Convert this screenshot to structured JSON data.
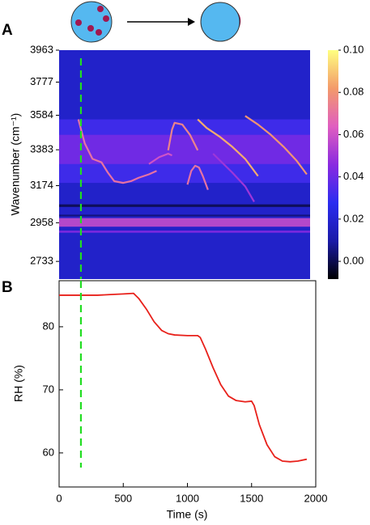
{
  "chart_data": [
    {
      "type": "heatmap",
      "panel": "A",
      "y_label": "Wavenumber (cm⁻¹)",
      "xlim": [
        0,
        2000
      ],
      "ylim": [
        2630,
        3963
      ],
      "yticks": [
        3963,
        3777,
        3584,
        3383,
        3174,
        2958,
        2733
      ],
      "clim": [
        -0.0084,
        0.1
      ],
      "cticks": [
        {
          "value": 0,
          "label": "0.00"
        },
        {
          "value": 0.02,
          "label": "0.02"
        },
        {
          "value": 0.04,
          "label": "0.04"
        },
        {
          "value": 0.06,
          "label": "0.06"
        },
        {
          "value": 0.08,
          "label": "0.08"
        },
        {
          "value": 0.1,
          "label": "0.10"
        }
      ],
      "colormap": [
        "#000000",
        "#1a1aa8",
        "#2b2cf0",
        "#8a2ae0",
        "#e05ec0",
        "#f39a6a",
        "#ffff80"
      ],
      "background": 0.018,
      "bands": [
        {
          "from": 3190,
          "to": 3560,
          "value": 0.032
        },
        {
          "from": 3300,
          "to": 3470,
          "value": 0.042
        },
        {
          "from": 3050,
          "to": 3065,
          "value": 0.0
        },
        {
          "from": 2995,
          "to": 3005,
          "value": 0.004
        },
        {
          "from": 2935,
          "to": 2985,
          "value": 0.058
        },
        {
          "from": 2900,
          "to": 2912,
          "value": 0.045
        }
      ],
      "traces": [
        {
          "x": [
            150,
            200,
            260,
            330,
            380,
            430,
            500,
            560,
            620,
            700,
            760
          ],
          "y": [
            3560,
            3420,
            3330,
            3310,
            3250,
            3200,
            3190,
            3200,
            3220,
            3240,
            3260
          ],
          "value": 0.07
        },
        {
          "x": [
            700,
            780,
            850,
            880
          ],
          "y": [
            3300,
            3340,
            3360,
            3350
          ],
          "value": 0.06
        },
        {
          "x": [
            850,
            880,
            900,
            960,
            1020,
            1080
          ],
          "y": [
            3380,
            3500,
            3540,
            3530,
            3470,
            3380
          ],
          "value": 0.075
        },
        {
          "x": [
            1000,
            1030,
            1060,
            1090,
            1120,
            1160
          ],
          "y": [
            3180,
            3260,
            3290,
            3280,
            3230,
            3150
          ],
          "value": 0.07
        },
        {
          "x": [
            1080,
            1150,
            1250,
            1350,
            1450,
            1550
          ],
          "y": [
            3560,
            3510,
            3460,
            3400,
            3330,
            3230
          ],
          "value": 0.085
        },
        {
          "x": [
            1450,
            1550,
            1650,
            1750,
            1850,
            1930
          ],
          "y": [
            3580,
            3530,
            3470,
            3400,
            3320,
            3240
          ],
          "value": 0.08
        },
        {
          "x": [
            1200,
            1350,
            1450,
            1520
          ],
          "y": [
            3360,
            3250,
            3170,
            3080
          ],
          "value": 0.05
        }
      ],
      "vline": {
        "x": 170,
        "color": "#22dd22"
      }
    },
    {
      "type": "line",
      "panel": "B",
      "x_label": "Time (s)",
      "y_label": "RH (%)",
      "xlim": [
        0,
        2000
      ],
      "ylim": [
        54.6,
        87.3
      ],
      "xticks": [
        0,
        500,
        1000,
        1500,
        2000
      ],
      "yticks": [
        60,
        70,
        80
      ],
      "x": [
        0,
        100,
        200,
        300,
        400,
        500,
        580,
        620,
        680,
        740,
        800,
        850,
        900,
        1000,
        1080,
        1100,
        1140,
        1200,
        1260,
        1320,
        1380,
        1450,
        1500,
        1520,
        1560,
        1620,
        1680,
        1740,
        1800,
        1860,
        1930
      ],
      "series": [
        {
          "color": "#e8201a",
          "values": [
            85,
            85,
            85,
            85,
            85.1,
            85.2,
            85.3,
            84.5,
            82.8,
            80.8,
            79.4,
            78.9,
            78.7,
            78.6,
            78.6,
            78.3,
            76.5,
            73.5,
            70.8,
            69.0,
            68.3,
            68.1,
            68.2,
            67.5,
            64.5,
            61.3,
            59.4,
            58.7,
            58.6,
            58.7,
            59.0
          ]
        }
      ],
      "vline": {
        "x": 170,
        "color": "#22dd22"
      }
    }
  ]
}
